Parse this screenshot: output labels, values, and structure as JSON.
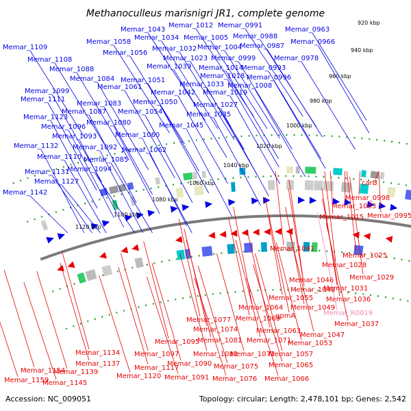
{
  "title": "Methanoculleus marisnigri JR1, complete genome",
  "footer": {
    "accession": "Accession: NC_009051",
    "summary": "Topology: circular; Length: 2,478,101 bp; Genes: 2,542"
  },
  "colors": {
    "forward": "#0000e6",
    "reverse": "#e60000",
    "rna": "#ee88bb",
    "backbone": "#7a7a7a",
    "tick": "#229922"
  },
  "kbp_ticks": [
    "920 kbp",
    "940 kbp",
    "960 kbp",
    "980 kbp",
    "1000 kbp",
    "1020 kbp",
    "1040 kbp",
    "1060 kbp",
    "1080 kbp",
    "1100 kbp",
    "1120 kbp"
  ],
  "blue_labels": [
    "Memar_1043",
    "Memar_1012",
    "Memar_0991",
    "Memar_0963",
    "Memar_1058",
    "Memar_1034",
    "Memar_1005",
    "Memar_0988",
    "Memar_0966",
    "Memar_1109",
    "Memar_1056",
    "Memar_1032",
    "Memar_1004",
    "Memar_0987",
    "Memar_1108",
    "Memar_1023",
    "Memar_0999",
    "Memar_0978",
    "Memar_1039",
    "Memar_1014",
    "Memar_0993",
    "Memar_1088",
    "Memar_1018",
    "Memar_0996",
    "Memar_1084",
    "Memar_1051",
    "Memar_1008",
    "Memar_1061",
    "Memar_1033",
    "Memar_1099",
    "Memar_1042",
    "Memar_1019",
    "Memar_1111",
    "Memar_1083",
    "Memar_1050",
    "Memar_1027",
    "Memar_1087",
    "Memar_1054",
    "Memar_1035",
    "Memar_1123",
    "Memar_1080",
    "Memar_1045",
    "Memar_1096",
    "Memar_1060",
    "Memar_1093",
    "Memar_1132",
    "Memar_1092",
    "Memar_1062",
    "Memar_1110",
    "Memar_1085",
    "Memar_1094",
    "Memar_1131",
    "Memar_1127",
    "Memar_1142"
  ],
  "red_labels": [
    "carB",
    "Memar_0998",
    "Memar_1003",
    "Memar_1015",
    "Memar_0995",
    "Memar_1041",
    "Memar_1025",
    "Memar_1028",
    "Memar_1029",
    "Memar_1046",
    "Memar_1031",
    "Memar_1048",
    "Memar_1055",
    "Memar_1036",
    "Memar_1049",
    "Memar_1064",
    "Memar_R0019",
    "gpmA",
    "Memar_1069",
    "Memar_1037",
    "Memar_1077",
    "Memar_1074",
    "Memar_1063",
    "Memar_1047",
    "Memar_1081",
    "Memar_1071",
    "Memar_1053",
    "Memar_1095",
    "Memar_1082",
    "Memar_1072",
    "Memar_1057",
    "Memar_1134",
    "Memar_1097",
    "Memar_1090",
    "Memar_1075",
    "Memar_1065",
    "Memar_1137",
    "Memar_1117",
    "Memar_1154",
    "Memar_1139",
    "Memar_1120",
    "Memar_1091",
    "Memar_1076",
    "Memar_1066",
    "Memar_1159",
    "Memar_1145"
  ]
}
